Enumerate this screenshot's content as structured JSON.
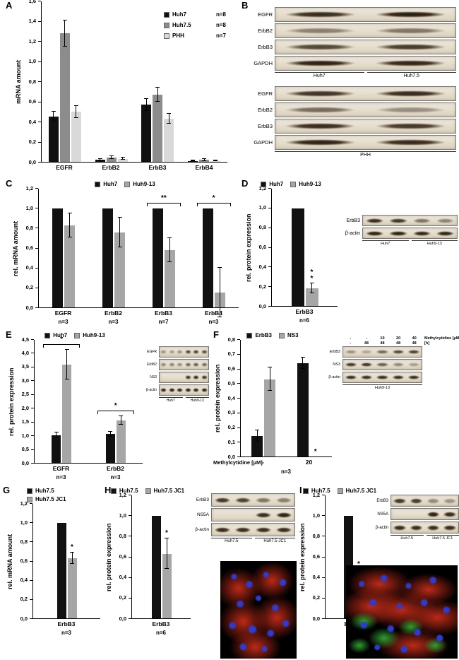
{
  "panels": {
    "A": {
      "label": "A"
    },
    "B": {
      "label": "B",
      "blot_top": {
        "rows": [
          {
            "label": "EGFR",
            "bands": [
              0.85,
              0.92
            ]
          },
          {
            "label": "ErbB2",
            "bands": [
              0.45,
              0.5
            ],
            "thin": true
          },
          {
            "label": "ErbB3",
            "bands": [
              0.72,
              0.78
            ]
          },
          {
            "label": "GAPDH",
            "bands": [
              0.9,
              0.88
            ]
          }
        ],
        "lane_groups": [
          {
            "label": "Huh7",
            "lanes": 1
          },
          {
            "label": "Huh7.5",
            "lanes": 1
          }
        ]
      },
      "blot_bottom": {
        "rows": [
          {
            "label": "EGFR",
            "bands": [
              0.82,
              0.86
            ]
          },
          {
            "label": "ErbB2",
            "bands": [
              0.55,
              0.38
            ],
            "thin": true
          },
          {
            "label": "ErbB3",
            "bands": [
              0.85,
              0.8
            ]
          },
          {
            "label": "GAPDH",
            "bands": [
              0.9,
              0.86
            ]
          }
        ],
        "lane_groups": [
          {
            "label": "PHH",
            "lanes": 2
          }
        ]
      }
    },
    "C": {
      "label": "C"
    },
    "D": {
      "label": "D",
      "blot": {
        "rows": [
          {
            "label": "ErbB3",
            "bands": [
              0.85,
              0.8,
              0.5,
              0.42
            ]
          },
          {
            "label": "β-actin",
            "bands": [
              0.9,
              0.9,
              0.88,
              0.88
            ]
          }
        ],
        "lane_groups": [
          {
            "label": "Huh7",
            "lanes": 1
          },
          {
            "label": "Huh9-13",
            "lanes": 1
          }
        ]
      }
    },
    "E": {
      "label": "E",
      "blot": {
        "rows": [
          {
            "label": "EGFR",
            "bands": [
              0.35,
              0.3,
              0.35,
              0.7,
              0.72,
              0.68
            ]
          },
          {
            "label": "ErbB2",
            "bands": [
              0.4,
              0.42,
              0.38,
              0.55,
              0.6,
              0.55
            ]
          },
          {
            "label": "NS3",
            "bands": [
              0,
              0,
              0,
              0.8,
              0.85,
              0.8
            ]
          },
          {
            "label": "β-actin",
            "bands": [
              0.88,
              0.9,
              0.88,
              0.9,
              0.88,
              0.9
            ]
          }
        ],
        "lane_groups": [
          {
            "label": "Huh7",
            "lanes": 1
          },
          {
            "label": "Huh9-13",
            "lanes": 1
          }
        ]
      }
    },
    "F": {
      "label": "F",
      "blot": {
        "headers": [
          {
            "label": "Methylcytidine [µM]",
            "values": [
              "-",
              "-",
              "10",
              "20",
              "40"
            ]
          },
          {
            "label": "[h]",
            "values": [
              "-",
              "48",
              "48",
              "48",
              "48"
            ]
          }
        ],
        "rows": [
          {
            "label": "ErbB3",
            "bands": [
              0.35,
              0.25,
              0.55,
              0.7,
              0.75
            ]
          },
          {
            "label": "NS3",
            "bands": [
              0.8,
              0.82,
              0.6,
              0.4,
              0.3
            ]
          },
          {
            "label": "β-actin",
            "bands": [
              0.85,
              0.85,
              0.85,
              0.85,
              0.85
            ]
          }
        ],
        "lane_groups": [
          {
            "label": "Huh9-13",
            "lanes": 1
          }
        ]
      }
    },
    "G": {
      "label": "G"
    },
    "H": {
      "label": "H",
      "blot": {
        "rows": [
          {
            "label": "ErbB3",
            "bands": [
              0.8,
              0.75,
              0.5,
              0.45
            ]
          },
          {
            "label": "NS5A",
            "bands": [
              0,
              0,
              0.85,
              0.9
            ]
          },
          {
            "label": "β-actin",
            "bands": [
              0.85,
              0.85,
              0.85,
              0.85
            ]
          }
        ],
        "lane_groups": [
          {
            "label": "Huh7.5",
            "lanes": 1
          },
          {
            "label": "Huh7.5 JC1",
            "lanes": 1
          }
        ]
      },
      "microscopy": {
        "cytoplasm": "#bb2a18",
        "nuclei": "#2d3bd0"
      }
    },
    "I": {
      "label": "I",
      "blot": {
        "rows": [
          {
            "label": "ErbB3",
            "bands": [
              0.8,
              0.78,
              0.4,
              0.35
            ]
          },
          {
            "label": "NS5A",
            "bands": [
              0,
              0,
              0.9,
              0.85
            ]
          },
          {
            "label": "β-actin",
            "bands": [
              0.85,
              0.85,
              0.85,
              0.85
            ]
          }
        ],
        "lane_groups": [
          {
            "label": "Huh7.5",
            "lanes": 1
          },
          {
            "label": "Huh7.5 JC1",
            "lanes": 1
          }
        ]
      },
      "microscopy": {
        "cytoplasm": "#bb2a18",
        "nuclei": "#2d3bd0",
        "membrane": "#2f9e2f"
      }
    }
  },
  "chart_data": [
    {
      "panel": "A",
      "type": "bar",
      "ylabel": "mRNA amount",
      "ylim": [
        0,
        1.6
      ],
      "ytick_step": 0.2,
      "legend_layout": "overlay-vertical",
      "series": [
        {
          "name": "Huh7",
          "n": "n=8",
          "color": "#111111"
        },
        {
          "name": "Huh7.5",
          "n": "n=8",
          "color": "#8c8c8c"
        },
        {
          "name": "PHH",
          "n": "n=7",
          "color": "#d9d9d9"
        }
      ],
      "categories": [
        {
          "label": "EGFR"
        },
        {
          "label": "ErbB2"
        },
        {
          "label": "ErbB3"
        },
        {
          "label": "ErbB4"
        }
      ],
      "values": [
        [
          0.45,
          0.02,
          0.57,
          0.01
        ],
        [
          1.28,
          0.04,
          0.67,
          0.02
        ],
        [
          0.5,
          0.03,
          0.43,
          0.01
        ]
      ],
      "errors": [
        [
          0.05,
          0.01,
          0.06,
          0.005
        ],
        [
          0.13,
          0.015,
          0.07,
          0.01
        ],
        [
          0.06,
          0.01,
          0.05,
          0.005
        ]
      ]
    },
    {
      "panel": "C",
      "type": "bar",
      "ylabel": "rel. mRNA amount",
      "ylim": [
        0,
        1.2
      ],
      "ytick_step": 0.2,
      "legend_layout": "row",
      "series": [
        {
          "name": "Huh7",
          "color": "#111111"
        },
        {
          "name": "Huh9-13",
          "color": "#a6a6a6"
        }
      ],
      "categories": [
        {
          "label": "EGFR",
          "sub": "n=3"
        },
        {
          "label": "ErbB2",
          "sub": "n=3"
        },
        {
          "label": "ErbB3",
          "sub": "n=7"
        },
        {
          "label": "ErbB4",
          "sub": "n=3"
        }
      ],
      "values": [
        [
          1.0,
          1.0,
          1.0,
          1.0
        ],
        [
          0.83,
          0.76,
          0.58,
          0.15
        ]
      ],
      "errors": [
        [
          0,
          0,
          0,
          0
        ],
        [
          0.12,
          0.15,
          0.12,
          0.25
        ]
      ],
      "sigs": [
        {
          "cat": 2,
          "style": "bracket",
          "label": "**"
        },
        {
          "cat": 3,
          "style": "bracket",
          "label": "*"
        }
      ]
    },
    {
      "panel": "D",
      "type": "bar",
      "ylabel": "rel. protein expression",
      "ylim": [
        0,
        1.2
      ],
      "ytick_step": 0.2,
      "legend_layout": "row",
      "series": [
        {
          "name": "Huh7",
          "color": "#111111"
        },
        {
          "name": "Huh9-13",
          "color": "#a6a6a6"
        }
      ],
      "categories": [
        {
          "label": "ErbB3",
          "sub": "n=6"
        }
      ],
      "values": [
        [
          1.0
        ],
        [
          0.18
        ]
      ],
      "errors": [
        [
          0
        ],
        [
          0.05
        ]
      ],
      "sigs": [
        {
          "cat": 0,
          "series": 1,
          "style": "star",
          "label": "*\n*"
        }
      ]
    },
    {
      "panel": "E",
      "type": "bar",
      "ylabel": "rel. protein expression",
      "ylim": [
        0,
        4.5
      ],
      "ytick_step": 0.5,
      "legend_layout": "row",
      "series": [
        {
          "name": "Huh7",
          "color": "#111111"
        },
        {
          "name": "Huh9-13",
          "color": "#a6a6a6"
        }
      ],
      "categories": [
        {
          "label": "EGFR",
          "sub": "n=3"
        },
        {
          "label": "ErbB2",
          "sub": "n=3"
        }
      ],
      "values": [
        [
          1.0,
          1.05
        ],
        [
          3.6,
          1.55
        ]
      ],
      "errors": [
        [
          0.1,
          0.1
        ],
        [
          0.55,
          0.15
        ]
      ],
      "sigs": [
        {
          "cat": 0,
          "style": "bracket",
          "label": "*"
        },
        {
          "cat": 1,
          "style": "bracket",
          "label": "*"
        }
      ]
    },
    {
      "panel": "F",
      "type": "bar",
      "ylabel": "rel. protein expression",
      "ylim": [
        0,
        0.8
      ],
      "ytick_step": 0.1,
      "legend_layout": "row",
      "series": [
        {
          "name": "ErbB3",
          "color": "#111111"
        },
        {
          "name": "NS3",
          "color": "#a6a6a6"
        }
      ],
      "categories": [
        {
          "label": "-"
        },
        {
          "label": "20"
        }
      ],
      "values": [
        [
          0.14,
          0.64
        ],
        [
          0.53,
          0
        ]
      ],
      "errors": [
        [
          0.04,
          0.04
        ],
        [
          0.08,
          0
        ]
      ],
      "sigs": [
        {
          "cat": 1,
          "series": 1,
          "style": "star",
          "label": "*"
        }
      ],
      "xlabel_left": "Methylcytidine [µM]",
      "footer": "n=3"
    },
    {
      "panel": "G",
      "type": "bar",
      "ylabel": "rel. mRNA amount",
      "ylim": [
        0,
        1.2
      ],
      "ytick_step": 0.2,
      "legend_layout": "column",
      "series": [
        {
          "name": "Huh7.5",
          "color": "#111111"
        },
        {
          "name": "Huh7.5 JC1",
          "color": "#a6a6a6"
        }
      ],
      "categories": [
        {
          "label": "ErbB3",
          "sub": "n=3"
        }
      ],
      "values": [
        [
          1.0
        ],
        [
          0.63
        ]
      ],
      "errors": [
        [
          0
        ],
        [
          0.06
        ]
      ],
      "sigs": [
        {
          "cat": 0,
          "series": 1,
          "style": "star",
          "label": "*"
        }
      ]
    },
    {
      "panel": "H",
      "type": "bar",
      "ylabel": "rel. protein expression",
      "ylim": [
        0,
        1.2
      ],
      "ytick_step": 0.2,
      "legend_layout": "row",
      "series": [
        {
          "name": "Huh7.5",
          "color": "#111111"
        },
        {
          "name": "Huh7.5 JC1",
          "color": "#a6a6a6"
        }
      ],
      "categories": [
        {
          "label": "ErbB3",
          "sub": "n=6"
        }
      ],
      "values": [
        [
          1.0
        ],
        [
          0.63
        ]
      ],
      "errors": [
        [
          0
        ],
        [
          0.15
        ]
      ],
      "sigs": [
        {
          "cat": 0,
          "series": 1,
          "style": "star",
          "label": "*"
        }
      ]
    },
    {
      "panel": "I",
      "type": "bar",
      "ylabel": "rel. protein expression",
      "ylim": [
        0,
        1.2
      ],
      "ytick_step": 0.2,
      "legend_layout": "row",
      "series": [
        {
          "name": "Huh7.5",
          "color": "#111111"
        },
        {
          "name": "Huh7.5 JC1",
          "color": "#a6a6a6"
        }
      ],
      "categories": [
        {
          "label": "ErbB3",
          "sub": "n=3"
        }
      ],
      "values": [
        [
          1.0
        ],
        [
          0.38
        ]
      ],
      "errors": [
        [
          0
        ],
        [
          0.1
        ]
      ],
      "sigs": [
        {
          "cat": 0,
          "series": 1,
          "style": "star",
          "label": "*"
        }
      ]
    }
  ]
}
